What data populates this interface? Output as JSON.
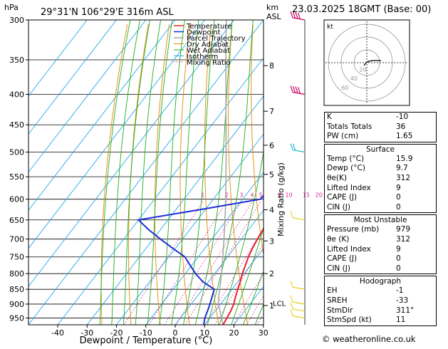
{
  "header": {
    "hpa_unit": "hPa",
    "location": "29°31'N 106°29'E 316m ASL",
    "km_unit": "km",
    "asl_unit": "ASL",
    "datetime": "23.03.2025 18GMT (Base: 00)"
  },
  "footer": {
    "copyright": "© weatheronline.co.uk"
  },
  "colors": {
    "temperature": "#e8242b",
    "dewpoint": "#1d2dd6",
    "parcel": "#a8a8a8",
    "dry_adiabat": "#e08a00",
    "wet_adiabat": "#1fae1f",
    "isotherm": "#22a8e8",
    "mixing_ratio": "#d6259a",
    "wind_low": "#e8d32a",
    "wind_mid": "#1fc0c8",
    "wind_high": "#cc0066"
  },
  "hodograph": {
    "kt_label": "kt",
    "ring_labels": [
      "20",
      "40",
      "60"
    ]
  },
  "indices": {
    "top": [
      {
        "label": "K",
        "value": "-10"
      },
      {
        "label": "Totals Totals",
        "value": "36"
      },
      {
        "label": "PW (cm)",
        "value": "1.65"
      }
    ],
    "surface_title": "Surface",
    "surface": [
      {
        "label": "Temp (°C)",
        "value": "15.9"
      },
      {
        "label": "Dewp (°C)",
        "value": "9.7"
      },
      {
        "label": "θe(K)",
        "value": "312"
      },
      {
        "label": "Lifted Index",
        "value": "9"
      },
      {
        "label": "CAPE (J)",
        "value": "0"
      },
      {
        "label": "CIN (J)",
        "value": "0"
      }
    ],
    "mu_title": "Most Unstable",
    "mu": [
      {
        "label": "Pressure (mb)",
        "value": "979"
      },
      {
        "label": "θe (K)",
        "value": "312"
      },
      {
        "label": "Lifted Index",
        "value": "9"
      },
      {
        "label": "CAPE (J)",
        "value": "0"
      },
      {
        "label": "CIN (J)",
        "value": "0"
      }
    ],
    "hodo_title": "Hodograph",
    "hodo": [
      {
        "label": "EH",
        "value": "-1"
      },
      {
        "label": "SREH",
        "value": "-33"
      },
      {
        "label": "StmDir",
        "value": "311°"
      },
      {
        "label": "StmSpd (kt)",
        "value": "11"
      }
    ]
  },
  "chart_data": {
    "type": "line",
    "xlabel": "Dewpoint / Temperature (°C)",
    "ylabel_right": "Mixing Ratio (g/kg)",
    "x_ticks": [
      -40,
      -30,
      -20,
      -10,
      0,
      10,
      20,
      30
    ],
    "xlim": [
      -40,
      40
    ],
    "pressure_levels": [
      300,
      350,
      400,
      450,
      500,
      550,
      600,
      650,
      700,
      750,
      800,
      850,
      900,
      950
    ],
    "ylim_hpa": [
      300,
      975
    ],
    "km_ticks": [
      {
        "label": "8",
        "p": 358
      },
      {
        "label": "7",
        "p": 427
      },
      {
        "label": "6",
        "p": 487
      },
      {
        "label": "5",
        "p": 545
      },
      {
        "label": "4",
        "p": 625
      },
      {
        "label": "3",
        "p": 705
      },
      {
        "label": "2",
        "p": 800
      },
      {
        "label": "1",
        "p": 905
      }
    ],
    "lcl_label": "LCL",
    "lcl_p": 897,
    "mixing_ratio_labels": [
      "1",
      "2",
      "3",
      "4",
      "5",
      "8",
      "10",
      "15",
      "20",
      "25"
    ],
    "mixing_ratio_values": [
      1,
      2,
      3,
      4,
      5,
      8,
      10,
      15,
      20,
      25
    ],
    "legend": [
      "Temperature",
      "Dewpoint",
      "Parcel Trajectory",
      "Dry Adiabat",
      "Wet Adiabat",
      "Isotherm",
      "Mixing Ratio"
    ],
    "series": [
      {
        "name": "Temperature",
        "p": [
          975,
          950,
          925,
          900,
          875,
          850,
          825,
          800,
          775,
          750,
          725,
          700,
          675,
          650,
          625,
          600,
          575,
          550,
          525,
          500,
          475,
          450,
          425,
          400,
          375,
          350,
          325,
          300
        ],
        "t": [
          16.3,
          15.8,
          15.3,
          14.5,
          13.2,
          12.0,
          10.8,
          9.4,
          8.3,
          7.1,
          6.2,
          5.5,
          4.9,
          3.8,
          1.8,
          -0.2,
          -2.0,
          -3.2,
          -4.6,
          -6.0,
          -8.0,
          -9.6,
          -12.3,
          -15.0,
          -18.3,
          -21.5,
          -25.5,
          -29.9
        ]
      },
      {
        "name": "Dewpoint",
        "p": [
          975,
          950,
          925,
          900,
          875,
          850,
          825,
          800,
          775,
          750,
          725,
          700,
          675,
          650,
          625,
          600,
          575,
          550,
          525,
          500,
          475,
          450,
          425,
          400,
          375,
          350,
          325,
          300
        ],
        "t": [
          9.7,
          8.3,
          7.4,
          6.4,
          5.2,
          4.0,
          -2.0,
          -6.5,
          -10.5,
          -14.5,
          -21.0,
          -27.5,
          -34.0,
          -40.0,
          -22.0,
          -4.0,
          -3.2,
          -4.0,
          -7.0,
          -9.0,
          -10.8,
          -12.2,
          -17.0,
          -22.0,
          -28.0,
          -32.5,
          -34.0,
          -35.0
        ]
      },
      {
        "name": "Parcel Trajectory",
        "p": [
          975,
          950,
          925,
          900,
          875,
          850,
          825,
          800,
          775,
          750,
          725,
          700,
          675,
          650,
          625,
          600,
          575,
          550,
          525,
          500,
          475,
          450,
          425,
          400,
          375,
          350,
          325,
          300
        ],
        "t": [
          16.3,
          14.0,
          11.7,
          9.2,
          7.5,
          5.8,
          4.1,
          2.3,
          0.4,
          -1.6,
          -3.7,
          -5.9,
          -8.2,
          -10.6,
          -13.1,
          -15.8,
          -18.6,
          -21.6,
          -24.7,
          -28.0,
          -31.5,
          -35.2,
          -39.1,
          -43.2,
          -47.6,
          -52.3,
          -57.3,
          -62.6
        ]
      }
    ],
    "wind_barbs": [
      {
        "p": 300,
        "speed_kt": 65,
        "color_key": "wind_high"
      },
      {
        "p": 400,
        "speed_kt": 40,
        "color_key": "wind_high"
      },
      {
        "p": 500,
        "speed_kt": 20,
        "color_key": "wind_mid"
      },
      {
        "p": 650,
        "speed_kt": 10,
        "color_key": "wind_low"
      },
      {
        "p": 850,
        "speed_kt": 5,
        "color_key": "wind_low"
      },
      {
        "p": 900,
        "speed_kt": 5,
        "color_key": "wind_low"
      },
      {
        "p": 925,
        "speed_kt": 5,
        "color_key": "wind_low"
      },
      {
        "p": 950,
        "speed_kt": 5,
        "color_key": "wind_low"
      }
    ]
  }
}
